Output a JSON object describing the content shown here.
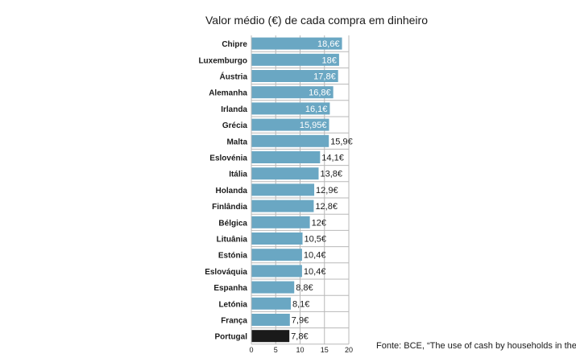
{
  "chart_data": {
    "type": "bar",
    "orientation": "horizontal",
    "title": "Valor médio (€) de cada compra em dinheiro",
    "categories": [
      "Chipre",
      "Luxemburgo",
      "Áustria",
      "Alemanha",
      "Irlanda",
      "Grécia",
      "Malta",
      "Eslovénia",
      "Itália",
      "Holanda",
      "Finlândia",
      "Bélgica",
      "Lituânia",
      "Estónia",
      "Eslováquia",
      "Espanha",
      "Letónia",
      "França",
      "Portugal"
    ],
    "values": [
      18.6,
      18,
      17.8,
      16.8,
      16.1,
      15.95,
      15.9,
      14.1,
      13.8,
      12.9,
      12.8,
      12,
      10.5,
      10.4,
      10.4,
      8.8,
      8.1,
      7.9,
      7.8
    ],
    "value_labels": [
      "18,6€",
      "18€",
      "17,8€",
      "16,8€",
      "16,1€",
      "15,95€",
      "15,9€",
      "14,1€",
      "13,8€",
      "12,9€",
      "12,8€",
      "12€",
      "10,5€",
      "10,4€",
      "10,4€",
      "8,8€",
      "8,1€",
      "7,9€",
      "7,8€"
    ],
    "labels_inside_count": 6,
    "highlight_category": "Portugal",
    "xticks": [
      "0",
      "5",
      "10",
      "15",
      "20"
    ],
    "xlim": [
      0,
      20
    ],
    "grid": true,
    "colors": {
      "bar": "#6aa7c3",
      "highlight": "#1a1a1a",
      "grid": "#b8b8b8",
      "text": "#1a1a1a",
      "inside_label": "#ffffff"
    }
  },
  "source": "Fonte: BCE, “The use of cash by households in the euro"
}
